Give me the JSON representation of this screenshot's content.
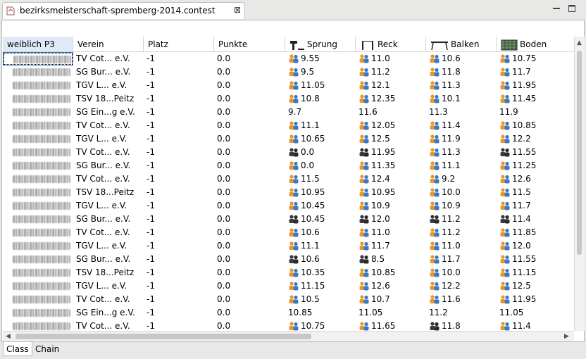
{
  "window": {
    "tab_title": "bezirksmeisterschaft-spremberg-2014.contest",
    "close_glyph": "⊠",
    "minimize_glyph": "—",
    "maximize_glyph": "□"
  },
  "table": {
    "headers": [
      "weiblich P3",
      "Verein",
      "Platz",
      "Punkte",
      "Sprung",
      "Reck",
      "Balken",
      "Boden"
    ],
    "rows": [
      {
        "verein": "TV Cot... e.V.",
        "platz": "-1",
        "punkte": "0.0",
        "sprung": "9.55",
        "reck": "11.0",
        "balken": "10.6",
        "boden": "10.75",
        "icons": [
          "blue",
          "blue",
          "blue",
          "blue"
        ]
      },
      {
        "verein": "SG Bur... e.V.",
        "platz": "-1",
        "punkte": "0.0",
        "sprung": "9.5",
        "reck": "11.2",
        "balken": "11.8",
        "boden": "11.7",
        "icons": [
          "blue",
          "blue",
          "blue",
          "blue"
        ]
      },
      {
        "verein": "TGV L... e.V.",
        "platz": "-1",
        "punkte": "0.0",
        "sprung": "11.05",
        "reck": "12.1",
        "balken": "11.3",
        "boden": "11.95",
        "icons": [
          "blue",
          "blue",
          "blue",
          "blue"
        ]
      },
      {
        "verein": "TSV 18...Peitz",
        "platz": "-1",
        "punkte": "0.0",
        "sprung": "10.8",
        "reck": "12.35",
        "balken": "10.1",
        "boden": "11.45",
        "icons": [
          "blue",
          "blue",
          "blue",
          "blue"
        ]
      },
      {
        "verein": "SG Ein...g e.V.",
        "platz": "-1",
        "punkte": "0.0",
        "sprung": "9.7",
        "reck": "11.6",
        "balken": "11.3",
        "boden": "11.9",
        "icons": [
          "none",
          "none",
          "none",
          "none"
        ]
      },
      {
        "verein": "TV Cot... e.V.",
        "platz": "-1",
        "punkte": "0.0",
        "sprung": "11.1",
        "reck": "12.05",
        "balken": "11.4",
        "boden": "10.85",
        "icons": [
          "blue",
          "blue",
          "blue",
          "blue"
        ]
      },
      {
        "verein": "TGV L... e.V.",
        "platz": "-1",
        "punkte": "0.0",
        "sprung": "10.65",
        "reck": "12.5",
        "balken": "11.9",
        "boden": "12.2",
        "icons": [
          "blue",
          "blue",
          "blue",
          "blue"
        ]
      },
      {
        "verein": "TV Cot... e.V.",
        "platz": "-1",
        "punkte": "0.0",
        "sprung": "0.0",
        "reck": "11.95",
        "balken": "11.3",
        "boden": "11.55",
        "icons": [
          "dark",
          "dark",
          "blue",
          "dark"
        ]
      },
      {
        "verein": "SG Bur... e.V.",
        "platz": "-1",
        "punkte": "0.0",
        "sprung": "0.0",
        "reck": "11.35",
        "balken": "11.1",
        "boden": "11.25",
        "icons": [
          "blue",
          "blue",
          "blue",
          "blue"
        ]
      },
      {
        "verein": "TV Cot... e.V.",
        "platz": "-1",
        "punkte": "0.0",
        "sprung": "11.5",
        "reck": "12.4",
        "balken": "9.2",
        "boden": "12.6",
        "icons": [
          "blue",
          "blue",
          "blue",
          "blue"
        ]
      },
      {
        "verein": "TSV 18...Peitz",
        "platz": "-1",
        "punkte": "0.0",
        "sprung": "10.95",
        "reck": "10.95",
        "balken": "10.0",
        "boden": "11.5",
        "icons": [
          "blue",
          "blue",
          "blue",
          "blue"
        ]
      },
      {
        "verein": "TGV L... e.V.",
        "platz": "-1",
        "punkte": "0.0",
        "sprung": "10.45",
        "reck": "10.9",
        "balken": "10.9",
        "boden": "11.7",
        "icons": [
          "blue",
          "blue",
          "blue",
          "blue"
        ]
      },
      {
        "verein": "SG Bur... e.V.",
        "platz": "-1",
        "punkte": "0.0",
        "sprung": "10.45",
        "reck": "12.0",
        "balken": "11.2",
        "boden": "11.4",
        "icons": [
          "dark",
          "dark",
          "dark",
          "dark"
        ]
      },
      {
        "verein": "TV Cot... e.V.",
        "platz": "-1",
        "punkte": "0.0",
        "sprung": "10.6",
        "reck": "11.0",
        "balken": "11.2",
        "boden": "11.85",
        "icons": [
          "blue",
          "blue",
          "blue",
          "blue"
        ]
      },
      {
        "verein": "TGV L... e.V.",
        "platz": "-1",
        "punkte": "0.0",
        "sprung": "11.1",
        "reck": "11.7",
        "balken": "11.0",
        "boden": "12.0",
        "icons": [
          "blue",
          "blue",
          "blue",
          "blue"
        ]
      },
      {
        "verein": "SG Bur... e.V.",
        "platz": "-1",
        "punkte": "0.0",
        "sprung": "10.6",
        "reck": "8.5",
        "balken": "11.7",
        "boden": "11.55",
        "icons": [
          "dark",
          "dark",
          "blue",
          "blue"
        ]
      },
      {
        "verein": "TSV 18...Peitz",
        "platz": "-1",
        "punkte": "0.0",
        "sprung": "10.35",
        "reck": "10.85",
        "balken": "10.0",
        "boden": "11.15",
        "icons": [
          "blue",
          "blue",
          "blue",
          "blue"
        ]
      },
      {
        "verein": "TGV L... e.V.",
        "platz": "-1",
        "punkte": "0.0",
        "sprung": "11.15",
        "reck": "12.6",
        "balken": "12.2",
        "boden": "12.5",
        "icons": [
          "blue",
          "blue",
          "blue",
          "blue"
        ]
      },
      {
        "verein": "TV Cot... e.V.",
        "platz": "-1",
        "punkte": "0.0",
        "sprung": "10.5",
        "reck": "10.7",
        "balken": "11.6",
        "boden": "11.95",
        "icons": [
          "blue",
          "blue",
          "blue",
          "blue"
        ]
      },
      {
        "verein": "SG Ein...g e.V.",
        "platz": "-1",
        "punkte": "0.0",
        "sprung": "10.85",
        "reck": "11.05",
        "balken": "11.2",
        "boden": "11.05",
        "icons": [
          "none",
          "none",
          "none",
          "none"
        ]
      },
      {
        "verein": "TV Cot... e.V.",
        "platz": "-1",
        "punkte": "0.0",
        "sprung": "10.75",
        "reck": "11.65",
        "balken": "11.8",
        "boden": "11.4",
        "icons": [
          "blue",
          "blue",
          "dark",
          "blue"
        ]
      }
    ]
  },
  "bottom_tabs": [
    "Class",
    "Chain"
  ],
  "colors": {
    "accent": "#3c6fb5",
    "judge_blue": "#3a78c2",
    "judge_orange": "#e8962a",
    "judge_dark": "#333333"
  }
}
